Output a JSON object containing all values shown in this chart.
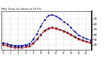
{
  "title": "Milw. Temp. w/ Indices w/ 24 Hrs.",
  "background_color": "#ffffff",
  "plot_bg_color": "#ffffff",
  "grid_color": "#999999",
  "x_values": [
    0,
    1,
    2,
    3,
    4,
    5,
    6,
    7,
    8,
    9,
    10,
    11,
    12,
    13,
    14,
    15,
    16,
    17,
    18,
    19,
    20,
    21,
    22,
    23
  ],
  "temp_black": [
    22,
    20,
    18,
    17,
    16,
    17,
    18,
    19,
    24,
    32,
    40,
    48,
    52,
    54,
    52,
    50,
    47,
    44,
    40,
    36,
    32,
    29,
    27,
    25
  ],
  "temp_red": [
    20,
    18,
    16,
    15,
    15,
    15,
    16,
    17,
    22,
    30,
    39,
    47,
    51,
    53,
    51,
    49,
    46,
    43,
    39,
    35,
    31,
    28,
    26,
    24
  ],
  "heat_blue": [
    24,
    22,
    20,
    19,
    18,
    19,
    20,
    22,
    30,
    42,
    56,
    68,
    76,
    78,
    75,
    71,
    65,
    60,
    53,
    45,
    39,
    35,
    32,
    29
  ],
  "ylabel_values": [
    70,
    60,
    50,
    40,
    30,
    20
  ],
  "xlim": [
    -0.5,
    23.5
  ],
  "ylim": [
    10,
    85
  ],
  "line_black_color": "#000000",
  "line_red_color": "#cc0000",
  "line_blue_color": "#0000cc",
  "marker_size": 1.5,
  "line_width": 0.8,
  "figwidth": 1.6,
  "figheight": 0.87,
  "dpi": 100
}
